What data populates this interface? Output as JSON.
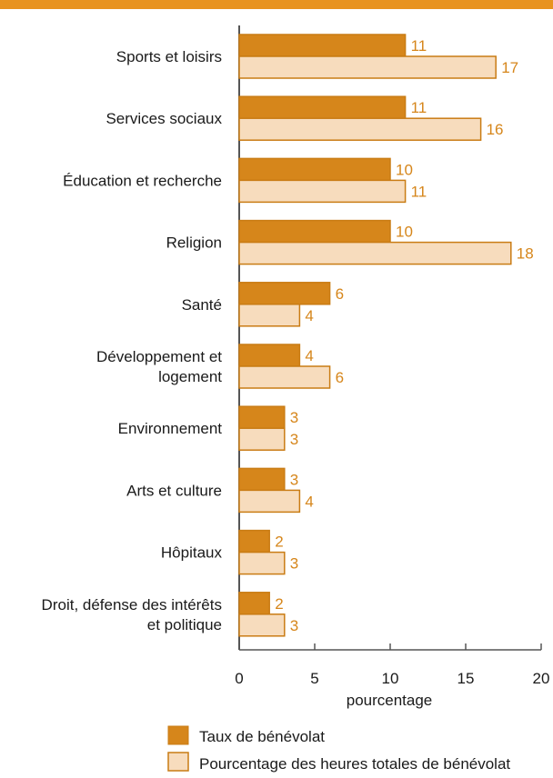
{
  "colors": {
    "top_rule": "#e8931f",
    "series_dark": "#d6861b",
    "series_light": "#f7dcbd",
    "bar_stroke": "#c97c14",
    "label_color": "#d6861b",
    "axis": "#555555",
    "text": "#1a1a1a"
  },
  "chart_data": {
    "type": "bar",
    "orientation": "horizontal",
    "categories": [
      [
        "Sports et loisirs"
      ],
      [
        "Services sociaux"
      ],
      [
        "Éducation et recherche"
      ],
      [
        "Religion"
      ],
      [
        "Santé"
      ],
      [
        "Développement et",
        "logement"
      ],
      [
        "Environnement"
      ],
      [
        "Arts et culture"
      ],
      [
        "Hôpitaux"
      ],
      [
        "Droit, défense des intérêts",
        "et politique"
      ]
    ],
    "series": [
      {
        "name": "Taux de bénévolat",
        "values": [
          11,
          11,
          10,
          10,
          6,
          4,
          3,
          3,
          2,
          2
        ]
      },
      {
        "name": "Pourcentage des heures totales de bénévolat",
        "values": [
          17,
          16,
          11,
          18,
          4,
          6,
          3,
          4,
          3,
          3
        ]
      }
    ],
    "xlim": [
      0,
      20
    ],
    "xticks": [
      "0",
      "5",
      "10",
      "15",
      "20"
    ],
    "xlabel": "pourcentage",
    "legend_position": "bottom",
    "grid": false
  }
}
